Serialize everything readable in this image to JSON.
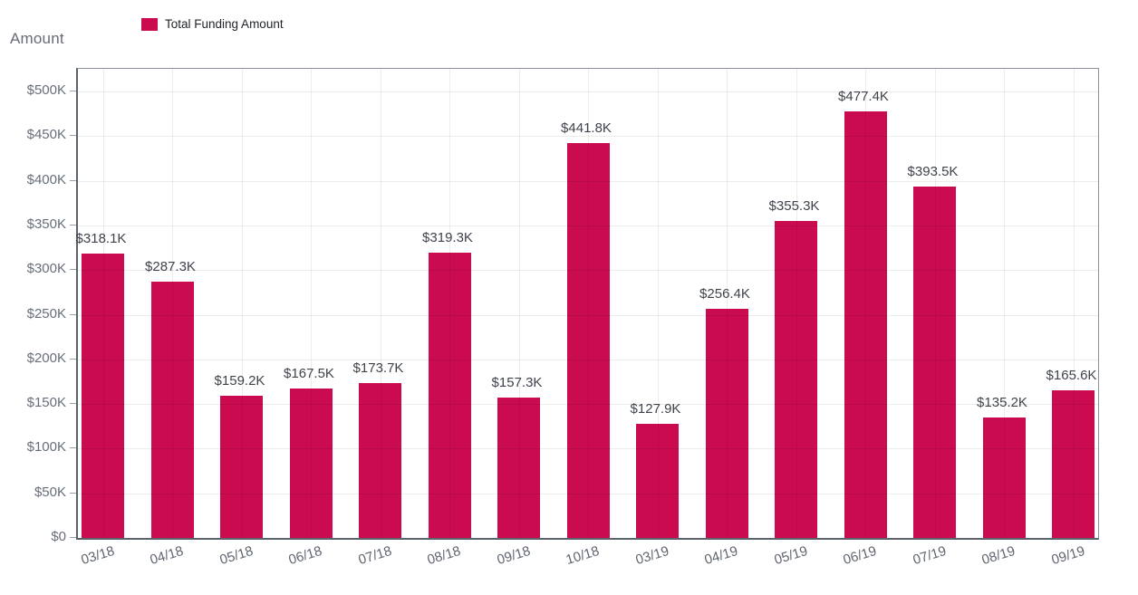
{
  "header": {
    "y_axis_title": "Amount",
    "legend": {
      "label": "Total Funding Amount",
      "swatch_color": "#ca0b50"
    }
  },
  "chart_data": {
    "type": "bar",
    "title": "",
    "series_name": "Total Funding Amount",
    "categories": [
      "03/18",
      "04/18",
      "05/18",
      "06/18",
      "07/18",
      "08/18",
      "09/18",
      "10/18",
      "03/19",
      "04/19",
      "05/19",
      "06/19",
      "07/19",
      "08/19",
      "09/19"
    ],
    "values_k": [
      318.1,
      287.3,
      159.2,
      167.5,
      173.7,
      319.3,
      157.3,
      441.8,
      127.9,
      256.4,
      355.3,
      477.4,
      393.5,
      135.2,
      165.6
    ],
    "value_labels": [
      "$318.1K",
      "$287.3K",
      "$159.2K",
      "$167.5K",
      "$173.7K",
      "$319.3K",
      "$157.3K",
      "$441.8K",
      "$127.9K",
      "$256.4K",
      "$355.3K",
      "$477.4K",
      "$393.5K",
      "$135.2K",
      "$165.6K"
    ],
    "xlabel": "",
    "ylabel": "Amount",
    "ylim_k": [
      0,
      525
    ],
    "yticks_k": [
      0,
      50,
      100,
      150,
      200,
      250,
      300,
      350,
      400,
      450,
      500
    ],
    "ytick_labels": [
      "$0",
      "$50K",
      "$100K",
      "$150K",
      "$200K",
      "$250K",
      "$300K",
      "$350K",
      "$400K",
      "$450K",
      "$500K"
    ],
    "bar_color": "#ca0b50",
    "grid": true,
    "legend_position": "top-left",
    "x_label_rotation_deg": -17
  }
}
